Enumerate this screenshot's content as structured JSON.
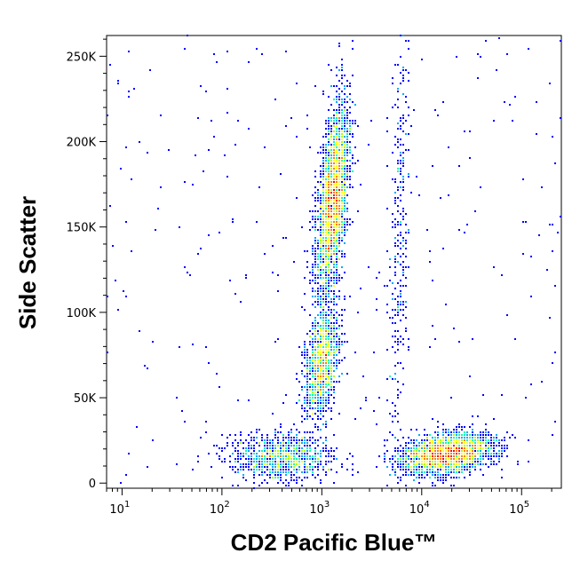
{
  "chart_data": {
    "type": "scatter",
    "subtype": "flow-cytometry-density-dot-plot",
    "xlabel": "CD2 Pacific Blue™",
    "ylabel": "Side Scatter",
    "x_scale": "log",
    "xlim": [
      7,
      250000
    ],
    "ylim": [
      -3000,
      262144
    ],
    "x_ticks": [
      {
        "value": 10,
        "base": "10",
        "exp": "1"
      },
      {
        "value": 100,
        "base": "10",
        "exp": "2"
      },
      {
        "value": 1000,
        "base": "10",
        "exp": "3"
      },
      {
        "value": 10000,
        "base": "10",
        "exp": "4"
      },
      {
        "value": 100000,
        "base": "10",
        "exp": "5"
      }
    ],
    "y_ticks": [
      {
        "value": 0,
        "label": "0"
      },
      {
        "value": 50000,
        "label": "50K"
      },
      {
        "value": 100000,
        "label": "100K"
      },
      {
        "value": 150000,
        "label": "150K"
      },
      {
        "value": 200000,
        "label": "200K"
      },
      {
        "value": 250000,
        "label": "250K"
      }
    ],
    "colormap": [
      "#0000ff",
      "#00aaff",
      "#00ffaa",
      "#aaff00",
      "#ffff00",
      "#ff7f00",
      "#ff0000"
    ],
    "populations": [
      {
        "x_center": 1300,
        "y_center": 165000,
        "log_x_sd": 0.07,
        "y_sd": 28000,
        "tilt": 0.6,
        "density": 1.0
      },
      {
        "x_center": 1000,
        "y_center": 70000,
        "log_x_sd": 0.08,
        "y_sd": 16000,
        "tilt": 0.4,
        "density": 0.45
      },
      {
        "x_center": 400,
        "y_center": 15000,
        "log_x_sd": 0.25,
        "y_sd": 7000,
        "tilt": 0.0,
        "density": 0.35
      },
      {
        "x_center": 18000,
        "y_center": 17000,
        "log_x_sd": 0.22,
        "y_sd": 6000,
        "tilt": 0.3,
        "density": 0.8
      },
      {
        "x_center": 6000,
        "y_center": 140000,
        "log_x_sd": 0.05,
        "y_sd": 70000,
        "tilt": 0.5,
        "density": 0.12
      }
    ]
  }
}
